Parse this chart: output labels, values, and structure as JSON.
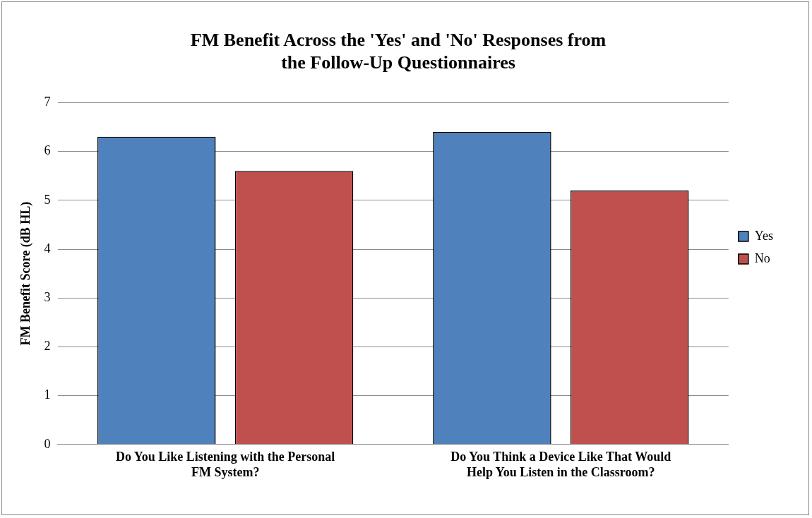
{
  "chart_data": {
    "type": "bar",
    "title": "FM Benefit Across the 'Yes' and 'No' Responses from the Follow-Up Questionnaires",
    "ylabel": "FM Benefit Score (dB HL)",
    "categories": [
      "Do You Like Listening with the Personal FM System?",
      "Do You Think a Device Like That Would Help You Listen in the Classroom?"
    ],
    "series": [
      {
        "name": "Yes",
        "color": "#4f81bd",
        "values": [
          6.3,
          6.4
        ]
      },
      {
        "name": "No",
        "color": "#c0504d",
        "values": [
          5.6,
          5.2
        ]
      }
    ],
    "ylim": [
      0,
      7
    ],
    "yticks": [
      0,
      1,
      2,
      3,
      4,
      5,
      6,
      7
    ],
    "grid": "y",
    "legend": "right"
  }
}
